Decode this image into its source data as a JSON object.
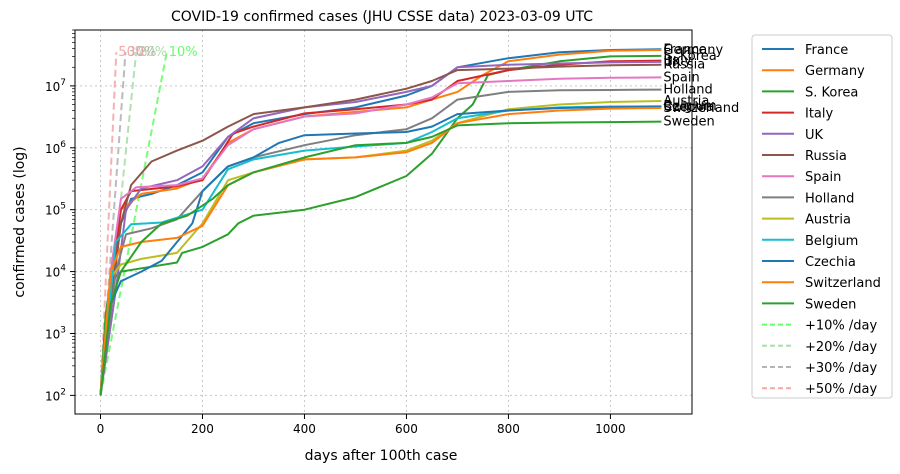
{
  "chart_data": {
    "type": "line",
    "title": "COVID-19 confirmed cases (JHU CSSE data) 2023-03-09 UTC",
    "xlabel": "days after 100th case",
    "ylabel": "confirmed cases (log)",
    "yscale": "log",
    "xlim": [
      -50,
      1160
    ],
    "ylim": [
      50,
      80000000
    ],
    "xticks": [
      0,
      200,
      400,
      600,
      800,
      1000
    ],
    "yticks": [
      {
        "value": 100,
        "base": "10",
        "exp": "2"
      },
      {
        "value": 1000,
        "base": "10",
        "exp": "3"
      },
      {
        "value": 10000,
        "base": "10",
        "exp": "4"
      },
      {
        "value": 100000,
        "base": "10",
        "exp": "5"
      },
      {
        "value": 1000000,
        "base": "10",
        "exp": "6"
      },
      {
        "value": 10000000,
        "base": "10",
        "exp": "7"
      }
    ],
    "grid": true,
    "legend_position": "outside-right",
    "series": [
      {
        "name": "France",
        "color": "#1f77b4",
        "end_label": "France",
        "points": [
          [
            0,
            100
          ],
          [
            20,
            3000
          ],
          [
            40,
            60000
          ],
          [
            60,
            150000
          ],
          [
            100,
            180000
          ],
          [
            150,
            250000
          ],
          [
            200,
            400000
          ],
          [
            250,
            1500000
          ],
          [
            300,
            2500000
          ],
          [
            400,
            3500000
          ],
          [
            500,
            4500000
          ],
          [
            600,
            7000000
          ],
          [
            650,
            10000000
          ],
          [
            700,
            20000000
          ],
          [
            800,
            28000000
          ],
          [
            900,
            35000000
          ],
          [
            1000,
            38000000
          ],
          [
            1100,
            39000000
          ]
        ]
      },
      {
        "name": "Germany",
        "color": "#ff7f0e",
        "end_label": "Germany",
        "points": [
          [
            0,
            100
          ],
          [
            20,
            10000
          ],
          [
            40,
            100000
          ],
          [
            80,
            180000
          ],
          [
            150,
            220000
          ],
          [
            200,
            320000
          ],
          [
            250,
            1200000
          ],
          [
            300,
            2000000
          ],
          [
            400,
            3200000
          ],
          [
            500,
            3800000
          ],
          [
            600,
            4500000
          ],
          [
            650,
            6000000
          ],
          [
            700,
            8000000
          ],
          [
            750,
            15000000
          ],
          [
            800,
            25000000
          ],
          [
            900,
            32000000
          ],
          [
            1000,
            37000000
          ],
          [
            1100,
            38000000
          ]
        ]
      },
      {
        "name": "S. Korea",
        "color": "#2ca02c",
        "end_label": "S. Korea",
        "points": [
          [
            0,
            100
          ],
          [
            10,
            2000
          ],
          [
            20,
            7000
          ],
          [
            40,
            10000
          ],
          [
            100,
            12000
          ],
          [
            150,
            14000
          ],
          [
            160,
            20000
          ],
          [
            200,
            25000
          ],
          [
            250,
            40000
          ],
          [
            270,
            60000
          ],
          [
            300,
            80000
          ],
          [
            400,
            100000
          ],
          [
            500,
            160000
          ],
          [
            600,
            350000
          ],
          [
            650,
            800000
          ],
          [
            700,
            3000000
          ],
          [
            730,
            5000000
          ],
          [
            760,
            15000000
          ],
          [
            800,
            18000000
          ],
          [
            900,
            25000000
          ],
          [
            1000,
            30000000
          ],
          [
            1100,
            30500000
          ]
        ]
      },
      {
        "name": "Italy",
        "color": "#d62728",
        "end_label": "Italy",
        "points": [
          [
            0,
            100
          ],
          [
            20,
            5000
          ],
          [
            40,
            100000
          ],
          [
            60,
            200000
          ],
          [
            150,
            240000
          ],
          [
            200,
            300000
          ],
          [
            230,
            700000
          ],
          [
            260,
            1700000
          ],
          [
            300,
            2200000
          ],
          [
            400,
            3600000
          ],
          [
            500,
            4200000
          ],
          [
            600,
            5000000
          ],
          [
            650,
            6000000
          ],
          [
            700,
            12000000
          ],
          [
            800,
            18000000
          ],
          [
            900,
            22000000
          ],
          [
            1000,
            25000000
          ],
          [
            1100,
            25600000
          ]
        ]
      },
      {
        "name": "UK",
        "color": "#9467bd",
        "end_label": "UK",
        "points": [
          [
            0,
            100
          ],
          [
            30,
            5000
          ],
          [
            50,
            100000
          ],
          [
            80,
            220000
          ],
          [
            150,
            300000
          ],
          [
            200,
            500000
          ],
          [
            250,
            1500000
          ],
          [
            300,
            3000000
          ],
          [
            400,
            4500000
          ],
          [
            500,
            5500000
          ],
          [
            600,
            8000000
          ],
          [
            650,
            10000000
          ],
          [
            700,
            20000000
          ],
          [
            800,
            22000000
          ],
          [
            900,
            23000000
          ],
          [
            1000,
            24000000
          ],
          [
            1100,
            24400000
          ]
        ]
      },
      {
        "name": "Russia",
        "color": "#8c564b",
        "end_label": "Russia",
        "points": [
          [
            0,
            100
          ],
          [
            20,
            3000
          ],
          [
            40,
            60000
          ],
          [
            60,
            250000
          ],
          [
            100,
            600000
          ],
          [
            150,
            900000
          ],
          [
            200,
            1300000
          ],
          [
            250,
            2200000
          ],
          [
            300,
            3500000
          ],
          [
            400,
            4500000
          ],
          [
            500,
            6000000
          ],
          [
            600,
            9000000
          ],
          [
            650,
            12000000
          ],
          [
            700,
            18000000
          ],
          [
            800,
            19000000
          ],
          [
            900,
            20500000
          ],
          [
            1000,
            21500000
          ],
          [
            1100,
            22000000
          ]
        ]
      },
      {
        "name": "Spain",
        "color": "#e377c2",
        "end_label": "Spain",
        "points": [
          [
            0,
            100
          ],
          [
            20,
            10000
          ],
          [
            40,
            150000
          ],
          [
            70,
            230000
          ],
          [
            150,
            250000
          ],
          [
            200,
            320000
          ],
          [
            250,
            1100000
          ],
          [
            300,
            2000000
          ],
          [
            400,
            3200000
          ],
          [
            500,
            3600000
          ],
          [
            600,
            5000000
          ],
          [
            650,
            6500000
          ],
          [
            700,
            11000000
          ],
          [
            800,
            12000000
          ],
          [
            900,
            13000000
          ],
          [
            1000,
            13500000
          ],
          [
            1100,
            13700000
          ]
        ]
      },
      {
        "name": "Holland",
        "color": "#7f7f7f",
        "end_label": "Holland",
        "points": [
          [
            0,
            100
          ],
          [
            30,
            10000
          ],
          [
            50,
            40000
          ],
          [
            100,
            50000
          ],
          [
            150,
            70000
          ],
          [
            200,
            200000
          ],
          [
            250,
            500000
          ],
          [
            300,
            700000
          ],
          [
            400,
            1100000
          ],
          [
            500,
            1600000
          ],
          [
            600,
            2000000
          ],
          [
            650,
            3000000
          ],
          [
            700,
            6000000
          ],
          [
            800,
            8000000
          ],
          [
            900,
            8500000
          ],
          [
            1000,
            8600000
          ],
          [
            1100,
            8700000
          ]
        ]
      },
      {
        "name": "Austria",
        "color": "#bcbd22",
        "end_label": "Austria",
        "points": [
          [
            0,
            100
          ],
          [
            20,
            8000
          ],
          [
            40,
            13000
          ],
          [
            80,
            16000
          ],
          [
            150,
            20000
          ],
          [
            200,
            60000
          ],
          [
            250,
            300000
          ],
          [
            300,
            400000
          ],
          [
            400,
            650000
          ],
          [
            500,
            700000
          ],
          [
            600,
            900000
          ],
          [
            650,
            1300000
          ],
          [
            700,
            2500000
          ],
          [
            800,
            4200000
          ],
          [
            900,
            5000000
          ],
          [
            1000,
            5500000
          ],
          [
            1100,
            5700000
          ]
        ]
      },
      {
        "name": "Belgium",
        "color": "#17becf",
        "end_label": "Belgium",
        "points": [
          [
            0,
            100
          ],
          [
            30,
            30000
          ],
          [
            60,
            58000
          ],
          [
            120,
            62000
          ],
          [
            200,
            100000
          ],
          [
            250,
            450000
          ],
          [
            300,
            650000
          ],
          [
            400,
            900000
          ],
          [
            500,
            1050000
          ],
          [
            600,
            1200000
          ],
          [
            650,
            1800000
          ],
          [
            700,
            3000000
          ],
          [
            800,
            4000000
          ],
          [
            900,
            4500000
          ],
          [
            1000,
            4650000
          ],
          [
            1100,
            4700000
          ]
        ]
      },
      {
        "name": "Czechia",
        "color": "#1f77b4",
        "end_label": "Czechia",
        "points": [
          [
            0,
            100
          ],
          [
            20,
            3000
          ],
          [
            40,
            7000
          ],
          [
            80,
            10000
          ],
          [
            120,
            15000
          ],
          [
            180,
            60000
          ],
          [
            200,
            200000
          ],
          [
            250,
            500000
          ],
          [
            300,
            700000
          ],
          [
            350,
            1200000
          ],
          [
            400,
            1600000
          ],
          [
            500,
            1700000
          ],
          [
            600,
            1800000
          ],
          [
            650,
            2200000
          ],
          [
            700,
            3500000
          ],
          [
            800,
            4000000
          ],
          [
            900,
            4400000
          ],
          [
            1000,
            4550000
          ],
          [
            1100,
            4600000
          ]
        ]
      },
      {
        "name": "Switzerland",
        "color": "#ff7f0e",
        "end_label": "Switzerland",
        "points": [
          [
            0,
            100
          ],
          [
            20,
            10000
          ],
          [
            40,
            25000
          ],
          [
            80,
            30000
          ],
          [
            150,
            35000
          ],
          [
            200,
            55000
          ],
          [
            250,
            250000
          ],
          [
            300,
            400000
          ],
          [
            400,
            650000
          ],
          [
            500,
            700000
          ],
          [
            600,
            850000
          ],
          [
            650,
            1200000
          ],
          [
            700,
            2500000
          ],
          [
            800,
            3500000
          ],
          [
            900,
            4000000
          ],
          [
            1000,
            4300000
          ],
          [
            1100,
            4400000
          ]
        ]
      },
      {
        "name": "Sweden",
        "color": "#2ca02c",
        "end_label": "Sweden",
        "points": [
          [
            0,
            100
          ],
          [
            20,
            3000
          ],
          [
            40,
            10000
          ],
          [
            80,
            30000
          ],
          [
            120,
            60000
          ],
          [
            170,
            80000
          ],
          [
            220,
            150000
          ],
          [
            250,
            250000
          ],
          [
            300,
            400000
          ],
          [
            400,
            700000
          ],
          [
            500,
            1100000
          ],
          [
            600,
            1200000
          ],
          [
            650,
            1500000
          ],
          [
            700,
            2300000
          ],
          [
            800,
            2500000
          ],
          [
            900,
            2560000
          ],
          [
            1000,
            2600000
          ],
          [
            1100,
            2650000
          ]
        ]
      }
    ],
    "reference_lines": [
      {
        "name": "+10% /day",
        "color": "#66ff66",
        "label": "10%",
        "points": [
          [
            0,
            100
          ],
          [
            130,
            35000000
          ]
        ]
      },
      {
        "name": "+20% /day",
        "color": "#aaddaa",
        "label": "20%",
        "points": [
          [
            0,
            100
          ],
          [
            70,
            35000000
          ]
        ]
      },
      {
        "name": "+30% /day",
        "color": "#b4b4b4",
        "label": "30%",
        "points": [
          [
            0,
            100
          ],
          [
            49,
            35000000
          ]
        ]
      },
      {
        "name": "+50% /day",
        "color": "#f4a8a8",
        "label": "50%",
        "points": [
          [
            0,
            100
          ],
          [
            31,
            35000000
          ]
        ]
      }
    ]
  }
}
